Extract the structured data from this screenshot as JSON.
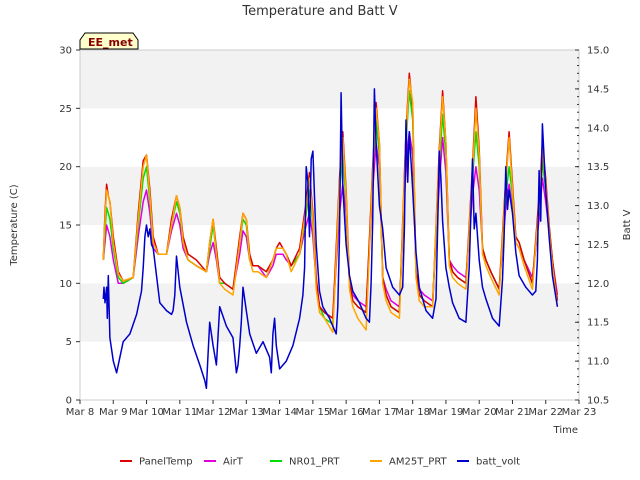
{
  "chart_data": {
    "type": "line",
    "title": "Temperature and Batt V",
    "xlabel": "Time",
    "ylabel": "Temperature (C)",
    "y2label": "Batt V",
    "site_label": "EE_met",
    "xlim": [
      8,
      23
    ],
    "ylim": [
      0,
      30
    ],
    "y2lim": [
      10.5,
      15.0
    ],
    "x_ticks": [
      "Mar 8",
      "Mar 9",
      "Mar 10",
      "Mar 11",
      "Mar 12",
      "Mar 13",
      "Mar 14",
      "Mar 15",
      "Mar 16",
      "Mar 17",
      "Mar 18",
      "Mar 19",
      "Mar 20",
      "Mar 21",
      "Mar 22",
      "Mar 23"
    ],
    "y_ticks": [
      0,
      5,
      10,
      15,
      20,
      25,
      30
    ],
    "y2_ticks": [
      10.5,
      11.0,
      11.5,
      12.0,
      12.5,
      13.0,
      13.5,
      14.0,
      14.5,
      15.0
    ],
    "grid": "horizontal bands",
    "legend_position": "bottom",
    "colors": {
      "PanelTemp": "#dd0000",
      "AirT": "#dd00dd",
      "NR01_PRT": "#00dd00",
      "AM25T_PRT": "#ffa500",
      "batt_volt": "#0000cc",
      "band": "#f2f2f2"
    },
    "series": [
      {
        "name": "PanelTemp",
        "axis": "left",
        "x": [
          8.7,
          8.75,
          8.8,
          8.85,
          8.9,
          9.0,
          9.15,
          9.3,
          9.6,
          9.75,
          9.9,
          10.0,
          10.1,
          10.2,
          10.35,
          10.6,
          10.75,
          10.9,
          11.0,
          11.1,
          11.25,
          11.5,
          11.8,
          11.9,
          12.0,
          12.1,
          12.2,
          12.35,
          12.6,
          12.8,
          12.9,
          13.0,
          13.1,
          13.2,
          13.35,
          13.6,
          13.8,
          13.9,
          14.0,
          14.1,
          14.2,
          14.35,
          14.6,
          14.8,
          14.9,
          15.0,
          15.1,
          15.2,
          15.35,
          15.6,
          15.8,
          15.9,
          16.0,
          16.1,
          16.2,
          16.35,
          16.6,
          16.8,
          16.9,
          17.0,
          17.1,
          17.2,
          17.35,
          17.6,
          17.8,
          17.9,
          18.0,
          18.1,
          18.2,
          18.35,
          18.6,
          18.8,
          18.9,
          19.0,
          19.1,
          19.2,
          19.35,
          19.6,
          19.8,
          19.9,
          20.0,
          20.1,
          20.2,
          20.35,
          20.6,
          20.8,
          20.9,
          21.0,
          21.1,
          21.2,
          21.35,
          21.6,
          21.8,
          21.9,
          22.0,
          22.1,
          22.2,
          22.35
        ],
        "y": [
          12.0,
          16.0,
          18.5,
          17.5,
          17.0,
          14.0,
          11.0,
          10.2,
          10.5,
          16.0,
          20.5,
          21.0,
          18.0,
          14.0,
          12.5,
          12.5,
          15.5,
          17.5,
          16.5,
          14.0,
          12.5,
          12.0,
          11.0,
          13.5,
          15.5,
          13.0,
          10.5,
          10.0,
          9.5,
          14.0,
          16.0,
          15.5,
          12.5,
          11.5,
          11.5,
          11.0,
          12.0,
          13.0,
          13.5,
          13.0,
          12.5,
          11.5,
          13.0,
          17.0,
          19.5,
          16.0,
          10.5,
          8.0,
          7.5,
          7.0,
          19.0,
          23.0,
          18.0,
          10.0,
          8.5,
          8.0,
          7.5,
          20.0,
          25.5,
          22.0,
          10.5,
          9.0,
          8.0,
          7.5,
          23.0,
          28.0,
          25.0,
          11.0,
          9.0,
          8.5,
          8.0,
          21.5,
          26.5,
          22.0,
          12.0,
          11.0,
          10.5,
          10.0,
          20.0,
          26.0,
          21.5,
          13.0,
          12.0,
          11.0,
          9.5,
          19.0,
          23.0,
          18.5,
          14.0,
          13.5,
          12.0,
          10.0,
          17.5,
          22.0,
          19.0,
          15.0,
          12.0,
          8.5
        ]
      },
      {
        "name": "AirT",
        "axis": "left",
        "x": [
          8.7,
          8.75,
          8.8,
          8.85,
          8.9,
          9.0,
          9.15,
          9.3,
          9.6,
          9.75,
          9.9,
          10.0,
          10.1,
          10.2,
          10.35,
          10.6,
          10.75,
          10.9,
          11.0,
          11.1,
          11.25,
          11.5,
          11.8,
          11.9,
          12.0,
          12.1,
          12.2,
          12.35,
          12.6,
          12.8,
          12.9,
          13.0,
          13.1,
          13.2,
          13.35,
          13.6,
          13.8,
          13.9,
          14.0,
          14.1,
          14.2,
          14.35,
          14.6,
          14.8,
          14.9,
          15.0,
          15.1,
          15.2,
          15.35,
          15.6,
          15.8,
          15.9,
          16.0,
          16.1,
          16.2,
          16.35,
          16.6,
          16.8,
          16.9,
          17.0,
          17.1,
          17.2,
          17.35,
          17.6,
          17.8,
          17.9,
          18.0,
          18.1,
          18.2,
          18.35,
          18.6,
          18.8,
          18.9,
          19.0,
          19.1,
          19.2,
          19.35,
          19.6,
          19.8,
          19.9,
          20.0,
          20.1,
          20.2,
          20.35,
          20.6,
          20.8,
          20.9,
          21.0,
          21.1,
          21.2,
          21.35,
          21.6,
          21.8,
          21.9,
          22.0,
          22.1,
          22.2,
          22.35
        ],
        "y": [
          12.0,
          13.5,
          15.0,
          14.5,
          14.0,
          12.0,
          10.0,
          10.0,
          10.5,
          14.0,
          17.0,
          18.0,
          16.0,
          13.0,
          12.5,
          12.5,
          14.5,
          16.0,
          15.0,
          13.0,
          12.0,
          11.5,
          11.0,
          12.5,
          13.5,
          12.0,
          10.0,
          10.0,
          9.5,
          12.5,
          14.5,
          14.0,
          12.0,
          11.5,
          11.5,
          10.5,
          11.5,
          12.5,
          12.5,
          12.5,
          12.0,
          11.5,
          12.5,
          15.0,
          16.0,
          14.0,
          10.0,
          8.0,
          7.5,
          7.0,
          16.0,
          18.5,
          16.0,
          10.0,
          9.0,
          8.5,
          8.0,
          18.0,
          22.0,
          20.0,
          10.5,
          9.5,
          8.5,
          8.0,
          20.0,
          23.0,
          21.0,
          11.0,
          9.5,
          9.0,
          8.5,
          18.5,
          22.5,
          19.5,
          12.0,
          11.5,
          11.0,
          10.5,
          17.5,
          20.0,
          18.0,
          13.0,
          12.0,
          11.0,
          9.5,
          16.5,
          18.5,
          16.5,
          13.5,
          13.0,
          12.0,
          10.5,
          15.5,
          19.0,
          17.0,
          14.5,
          12.0,
          9.0
        ]
      },
      {
        "name": "NR01_PRT",
        "axis": "left",
        "x": [
          8.7,
          8.75,
          8.8,
          8.85,
          8.9,
          9.0,
          9.15,
          9.3,
          9.6,
          9.75,
          9.9,
          10.0,
          10.1,
          10.2,
          10.35,
          10.6,
          10.75,
          10.9,
          11.0,
          11.1,
          11.25,
          11.5,
          11.8,
          11.9,
          12.0,
          12.1,
          12.2,
          12.35,
          12.6,
          12.8,
          12.9,
          13.0,
          13.1,
          13.2,
          13.35,
          13.6,
          13.8,
          13.9,
          14.0,
          14.1,
          14.2,
          14.35,
          14.6,
          14.8,
          14.9,
          15.0,
          15.1,
          15.2,
          15.35,
          15.6,
          15.8,
          15.9,
          16.0,
          16.1,
          16.2,
          16.35,
          16.6,
          16.8,
          16.9,
          17.0,
          17.1,
          17.2,
          17.35,
          17.6,
          17.8,
          17.9,
          18.0,
          18.1,
          18.2,
          18.35,
          18.6,
          18.8,
          18.9,
          19.0,
          19.1,
          19.2,
          19.35,
          19.6,
          19.8,
          19.9,
          20.0,
          20.1,
          20.2,
          20.35,
          20.6,
          20.8,
          20.9,
          21.0,
          21.1,
          21.2,
          21.35,
          21.6,
          21.8,
          21.9,
          22.0,
          22.1,
          22.2,
          22.35
        ],
        "y": [
          12.0,
          14.5,
          16.5,
          16.0,
          15.5,
          13.0,
          10.5,
          10.0,
          10.5,
          15.0,
          19.0,
          20.0,
          17.0,
          13.5,
          12.5,
          12.5,
          15.0,
          17.0,
          16.0,
          13.5,
          12.0,
          11.5,
          11.0,
          13.0,
          15.0,
          12.5,
          10.0,
          10.0,
          9.5,
          13.5,
          15.5,
          15.0,
          12.0,
          11.5,
          11.5,
          11.0,
          12.0,
          13.0,
          13.0,
          13.0,
          12.5,
          11.5,
          12.5,
          16.0,
          18.0,
          15.0,
          10.0,
          8.0,
          7.0,
          6.5,
          18.0,
          21.0,
          17.0,
          10.0,
          8.5,
          8.0,
          7.5,
          19.5,
          24.0,
          21.0,
          10.5,
          9.0,
          8.0,
          7.5,
          22.0,
          26.5,
          24.0,
          11.0,
          9.0,
          8.5,
          8.0,
          20.0,
          24.5,
          21.0,
          12.0,
          11.0,
          10.5,
          10.0,
          19.0,
          23.0,
          20.0,
          13.0,
          12.0,
          11.0,
          9.5,
          17.5,
          20.0,
          17.5,
          14.0,
          13.5,
          12.0,
          10.0,
          16.5,
          20.5,
          18.0,
          15.0,
          12.0,
          8.5
        ]
      },
      {
        "name": "AM25T_PRT",
        "axis": "left",
        "x": [
          8.7,
          8.75,
          8.8,
          8.85,
          8.9,
          9.0,
          9.15,
          9.3,
          9.6,
          9.75,
          9.9,
          10.0,
          10.1,
          10.2,
          10.35,
          10.6,
          10.75,
          10.9,
          11.0,
          11.1,
          11.25,
          11.5,
          11.8,
          11.9,
          12.0,
          12.1,
          12.2,
          12.35,
          12.6,
          12.8,
          12.9,
          13.0,
          13.1,
          13.2,
          13.35,
          13.6,
          13.8,
          13.9,
          14.0,
          14.1,
          14.2,
          14.35,
          14.6,
          14.8,
          14.9,
          15.0,
          15.1,
          15.2,
          15.35,
          15.6,
          15.8,
          15.9,
          16.0,
          16.1,
          16.2,
          16.35,
          16.6,
          16.8,
          16.9,
          17.0,
          17.1,
          17.2,
          17.35,
          17.6,
          17.8,
          17.9,
          18.0,
          18.1,
          18.2,
          18.35,
          18.6,
          18.8,
          18.9,
          19.0,
          19.1,
          19.2,
          19.35,
          19.6,
          19.8,
          19.9,
          20.0,
          20.1,
          20.2,
          20.35,
          20.6,
          20.8,
          20.9,
          21.0,
          21.1,
          21.2,
          21.35,
          21.6,
          21.8,
          21.9,
          22.0,
          22.1,
          22.2,
          22.35
        ],
        "y": [
          12.0,
          15.5,
          18.0,
          17.5,
          17.0,
          13.5,
          10.8,
          10.2,
          10.5,
          15.5,
          20.0,
          21.0,
          17.5,
          13.5,
          12.5,
          12.5,
          15.0,
          17.5,
          16.5,
          13.5,
          12.0,
          11.5,
          11.0,
          13.5,
          15.5,
          12.5,
          10.0,
          9.5,
          9.0,
          13.5,
          16.0,
          15.5,
          12.0,
          11.0,
          11.0,
          10.5,
          12.0,
          13.0,
          13.0,
          13.0,
          12.5,
          11.0,
          12.5,
          16.5,
          19.0,
          15.5,
          9.5,
          7.5,
          7.0,
          5.8,
          18.5,
          22.5,
          17.5,
          9.5,
          8.0,
          7.0,
          6.0,
          19.5,
          25.0,
          22.0,
          10.0,
          8.5,
          7.5,
          7.0,
          22.5,
          27.5,
          25.5,
          10.5,
          8.5,
          8.0,
          8.0,
          21.0,
          26.0,
          22.0,
          11.5,
          10.5,
          10.0,
          9.5,
          19.5,
          25.0,
          21.0,
          12.5,
          11.5,
          10.5,
          9.0,
          18.5,
          22.5,
          18.0,
          13.5,
          13.0,
          11.5,
          9.5,
          17.0,
          21.5,
          18.5,
          14.5,
          11.5,
          8.0
        ]
      },
      {
        "name": "batt_volt",
        "axis": "right",
        "x": [
          8.7,
          8.72,
          8.75,
          8.78,
          8.8,
          8.82,
          8.85,
          8.9,
          9.0,
          9.1,
          9.2,
          9.3,
          9.5,
          9.7,
          9.85,
          9.9,
          9.95,
          10.0,
          10.05,
          10.1,
          10.15,
          10.2,
          10.4,
          10.6,
          10.75,
          10.8,
          10.85,
          10.9,
          11.0,
          11.2,
          11.4,
          11.6,
          11.75,
          11.8,
          11.85,
          11.9,
          12.0,
          12.1,
          12.2,
          12.4,
          12.6,
          12.7,
          12.75,
          12.8,
          12.85,
          12.9,
          13.0,
          13.1,
          13.3,
          13.5,
          13.7,
          13.75,
          13.8,
          13.85,
          13.9,
          14.0,
          14.2,
          14.4,
          14.6,
          14.7,
          14.75,
          14.8,
          14.85,
          14.9,
          14.95,
          15.0,
          15.1,
          15.2,
          15.3,
          15.5,
          15.6,
          15.7,
          15.75,
          15.8,
          15.85,
          15.9,
          16.0,
          16.1,
          16.2,
          16.4,
          16.6,
          16.7,
          16.75,
          16.8,
          16.85,
          16.9,
          17.0,
          17.1,
          17.2,
          17.4,
          17.6,
          17.7,
          17.75,
          17.8,
          17.85,
          17.9,
          18.0,
          18.1,
          18.2,
          18.4,
          18.6,
          18.7,
          18.75,
          18.8,
          18.85,
          18.9,
          19.0,
          19.1,
          19.2,
          19.4,
          19.6,
          19.7,
          19.75,
          19.8,
          19.85,
          19.9,
          20.0,
          20.1,
          20.2,
          20.4,
          20.6,
          20.7,
          20.75,
          20.8,
          20.85,
          20.9,
          21.0,
          21.1,
          21.2,
          21.4,
          21.6,
          21.7,
          21.75,
          21.8,
          21.85,
          21.9,
          22.0,
          22.1,
          22.2,
          22.35
        ],
        "y": [
          11.8,
          11.95,
          11.75,
          11.85,
          11.95,
          11.55,
          12.1,
          11.3,
          11.0,
          10.85,
          11.05,
          11.25,
          11.35,
          11.6,
          11.9,
          12.2,
          12.6,
          12.75,
          12.6,
          12.7,
          12.5,
          12.45,
          11.75,
          11.65,
          11.6,
          11.65,
          11.85,
          12.35,
          11.95,
          11.5,
          11.2,
          10.95,
          10.75,
          10.65,
          11.1,
          11.5,
          11.2,
          10.95,
          11.7,
          11.45,
          11.3,
          10.85,
          10.95,
          11.2,
          11.5,
          11.95,
          11.65,
          11.35,
          11.1,
          11.25,
          11.05,
          10.85,
          11.35,
          11.55,
          11.2,
          10.9,
          11.0,
          11.2,
          11.55,
          11.85,
          12.2,
          13.5,
          13.3,
          12.6,
          13.6,
          13.7,
          12.5,
          11.9,
          11.7,
          11.55,
          11.45,
          11.35,
          11.7,
          12.6,
          14.45,
          13.25,
          12.5,
          12.1,
          11.9,
          11.75,
          11.55,
          11.5,
          12.0,
          12.8,
          14.5,
          13.8,
          13.0,
          12.7,
          12.2,
          11.95,
          11.85,
          11.95,
          12.7,
          14.1,
          13.3,
          13.95,
          13.2,
          12.4,
          11.95,
          11.65,
          11.55,
          11.8,
          12.7,
          13.7,
          13.35,
          12.8,
          12.2,
          11.95,
          11.75,
          11.55,
          11.5,
          12.2,
          12.9,
          13.6,
          12.7,
          12.9,
          12.3,
          11.95,
          11.8,
          11.55,
          11.45,
          12.05,
          12.6,
          13.5,
          12.95,
          13.2,
          12.9,
          12.4,
          12.1,
          11.95,
          11.85,
          11.9,
          12.3,
          13.45,
          12.8,
          14.05,
          13.2,
          12.6,
          12.1,
          11.7
        ]
      }
    ]
  }
}
